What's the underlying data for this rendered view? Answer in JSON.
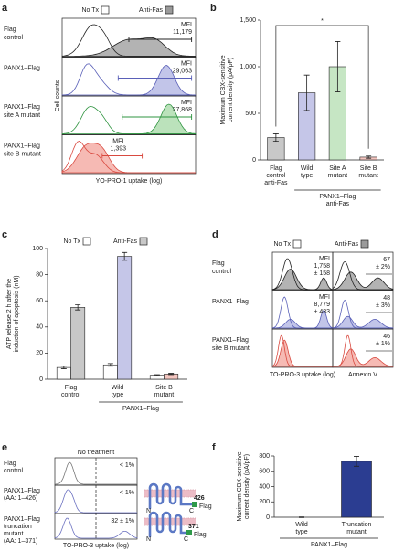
{
  "chart_data": [
    {
      "type": "bar",
      "panel": "b",
      "ylabel": "Maximum CBX-sensitive current density (pA/pF)",
      "categories": [
        "Flag control anti-Fas",
        "Wild type",
        "Site A mutant",
        "Site B mutant"
      ],
      "values": [
        240,
        720,
        1000,
        30
      ],
      "errors": [
        40,
        190,
        270,
        12
      ],
      "colors": [
        "#c8c8c8",
        "#c5c6e8",
        "#c6e6c4",
        "#f4c6c0"
      ],
      "ylim": [
        0,
        1500
      ],
      "yticks": [
        0,
        500,
        {
          "value": 1000,
          "label": "1,000"
        },
        {
          "value": 1500,
          "label": "1,500"
        }
      ],
      "group_label": "PANX1–Flag anti-Fas",
      "annotation": "*"
    },
    {
      "type": "grouped_bar",
      "panel": "c",
      "ylabel": "ATP release 2 h after the induction of apoptosis (nM)",
      "categories": [
        "Flag control",
        "Wild type",
        "Site B mutant"
      ],
      "series": [
        {
          "name": "No Tx",
          "color": "#ffffff",
          "values": [
            9,
            11,
            3
          ],
          "errors": [
            1,
            1,
            0.5
          ]
        },
        {
          "name": "Anti-Fas",
          "color": "#c8c8c8",
          "colors": [
            "#c8c8c8",
            "#c5c6e8",
            "#f4c6c0"
          ],
          "values": [
            55,
            94,
            4
          ],
          "errors": [
            2,
            3,
            0.5
          ]
        }
      ],
      "ylim": [
        0,
        100
      ],
      "yticks": [
        0,
        20,
        40,
        60,
        80,
        100
      ],
      "group_label": "PANX1–Flag"
    },
    {
      "type": "bar",
      "panel": "f",
      "ylabel": "Maximum CBX-sensitive current density (pA/pF)",
      "categories": [
        "Wild type",
        "Truncation mutant"
      ],
      "values": [
        0,
        730
      ],
      "errors": [
        4,
        65
      ],
      "colors": [
        "#2b3d91",
        "#2b3d91"
      ],
      "ylim": [
        0,
        800
      ],
      "yticks": [
        0,
        200,
        400,
        600,
        800
      ],
      "group_label": "PANX1–Flag"
    }
  ],
  "flow_panels": [
    {
      "panel": "a",
      "legend": [
        "No Tx",
        "Anti-Fas"
      ],
      "legend_colors": [
        "#ffffff",
        "#9a9a9a"
      ],
      "ylabel": "Cell counts",
      "xlabel": "YO-PRO-1 uptake (log)",
      "rows": [
        {
          "label": [
            "Flag",
            "control"
          ],
          "mfi": [
            "MFI",
            "11,179"
          ],
          "color": "#222222",
          "fill": "#9a9a9a"
        },
        {
          "label": [
            "PANX1–Flag"
          ],
          "mfi": [
            "MFI",
            "29,063"
          ],
          "color": "#5a60b8",
          "fill": "#aeb1e2"
        },
        {
          "label": [
            "PANX1–Flag",
            "site A mutant"
          ],
          "mfi": [
            "MFI",
            "27,868"
          ],
          "color": "#2f9440",
          "fill": "#a4d8a4"
        },
        {
          "label": [
            "PANX1–Flag",
            "site B mutant"
          ],
          "mfi": [
            "MFI",
            "1,393"
          ],
          "color": "#d94a40",
          "fill": "#f3a39b"
        }
      ]
    },
    {
      "panel": "d",
      "legend": [
        "No Tx",
        "Anti-Fas"
      ],
      "legend_colors": [
        "#ffffff",
        "#9a9a9a"
      ],
      "xlabels": [
        "TO-PRO-3 uptake (log)",
        "Annexin V"
      ],
      "rows": [
        {
          "label": [
            "Flag",
            "control"
          ],
          "mfi": [
            "MFI",
            "1,758",
            "± 158"
          ],
          "annexin": [
            "67",
            "± 2%"
          ],
          "color": "#222222",
          "fill": "#9a9a9a"
        },
        {
          "label": [
            "PANX1–Flag"
          ],
          "mfi": [
            "MFI",
            "8,779",
            "± 433"
          ],
          "annexin": [
            "48",
            "± 3%"
          ],
          "color": "#5a60b8",
          "fill": "#aeb1e2"
        },
        {
          "label": [
            "PANX1–Flag",
            "site B mutant"
          ],
          "annexin": [
            "46",
            "± 1%"
          ],
          "color": "#d94a40",
          "fill": "#f3a39b"
        }
      ]
    },
    {
      "panel": "e",
      "title": "No treatment",
      "xlabel": "TO-PRO-3 uptake (log)",
      "rows": [
        {
          "label": [
            "Flag",
            "control"
          ],
          "percent": "< 1%",
          "color": "#777777"
        },
        {
          "label": [
            "PANX1–Flag",
            "(AA: 1–426)"
          ],
          "percent": "< 1%",
          "color": "#6a70c0",
          "construct": {
            "n": "N",
            "c": "C",
            "end": "426",
            "tag": "Flag"
          }
        },
        {
          "label": [
            "PANX1–Flag",
            "truncation",
            "mutant",
            "(AA: 1–371)"
          ],
          "percent": "32 ± 1%",
          "color": "#6a70c0",
          "construct": {
            "n": "N",
            "c": "C",
            "end": "371",
            "tag": "Flag"
          }
        }
      ]
    }
  ]
}
